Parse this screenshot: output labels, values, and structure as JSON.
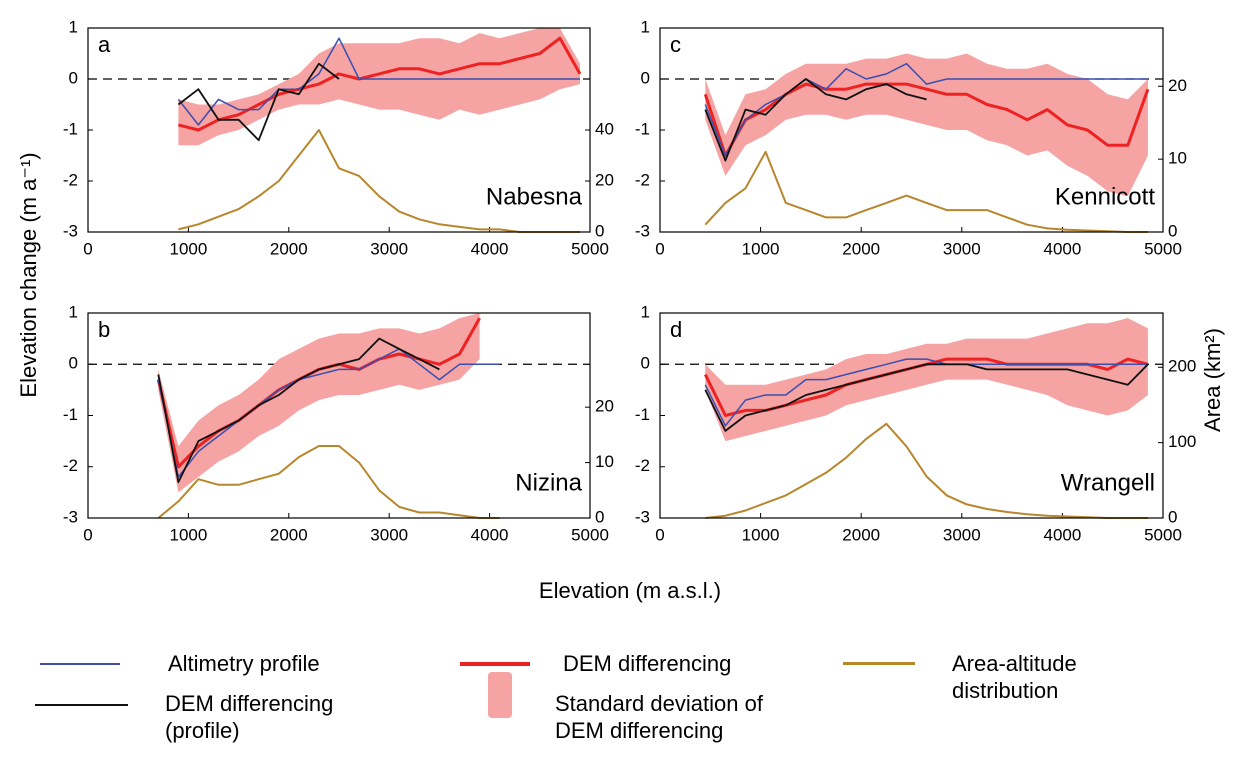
{
  "figure": {
    "y_label": "Elevation change (m a⁻¹)",
    "y2_label": "Area (km²)",
    "x_label": "Elevation (m a.s.l.)"
  },
  "chart_data": [
    {
      "type": "line",
      "panel": "a",
      "title": "Nabesna",
      "x": [
        900,
        1100,
        1300,
        1500,
        1700,
        1900,
        2100,
        2300,
        2500,
        2700,
        2900,
        3100,
        3300,
        3500,
        3700,
        3900,
        4100,
        4300,
        4500,
        4700,
        4900
      ],
      "series": [
        {
          "name": "Altimetry profile",
          "color": "#3a4fb0",
          "values": [
            -0.4,
            -0.9,
            -0.4,
            -0.6,
            -0.6,
            -0.2,
            -0.2,
            0.1,
            0.8,
            0,
            0,
            0,
            0,
            0,
            0,
            0,
            0,
            0,
            0,
            0,
            0
          ]
        },
        {
          "name": "DEM differencing",
          "color": "#ee2222",
          "values": [
            -0.9,
            -1.0,
            -0.8,
            -0.7,
            -0.5,
            -0.3,
            -0.2,
            -0.1,
            0.1,
            0.0,
            0.1,
            0.2,
            0.2,
            0.1,
            0.2,
            0.3,
            0.3,
            0.4,
            0.5,
            0.8,
            0.1
          ]
        },
        {
          "name": "Area-altitude distribution",
          "color": "#b8862c",
          "axis": "y2",
          "values": [
            1,
            3,
            6,
            9,
            14,
            20,
            30,
            40,
            25,
            22,
            14,
            8,
            5,
            3,
            2,
            1,
            1,
            0,
            0,
            0,
            0
          ]
        },
        {
          "name": "DEM differencing (profile)",
          "color": "#111111",
          "values": [
            -0.5,
            -0.2,
            -0.8,
            -0.8,
            -1.2,
            -0.2,
            -0.3,
            0.3,
            0.0,
            null,
            null,
            null,
            null,
            null,
            null,
            null,
            null,
            null,
            null,
            null,
            null
          ]
        },
        {
          "name": "Standard deviation of DEM differencing",
          "color": "#f5a3a3",
          "type": "band",
          "lower": [
            -1.3,
            -1.3,
            -1.1,
            -1.0,
            -0.8,
            -0.6,
            -0.5,
            -0.5,
            -0.4,
            -0.5,
            -0.6,
            -0.6,
            -0.7,
            -0.8,
            -0.6,
            -0.7,
            -0.6,
            -0.5,
            -0.4,
            -0.2,
            -0.1
          ],
          "upper": [
            -0.4,
            -0.5,
            -0.5,
            -0.4,
            -0.3,
            -0.1,
            0.1,
            0.5,
            0.7,
            0.7,
            0.7,
            0.7,
            0.8,
            0.8,
            0.7,
            0.9,
            0.8,
            0.9,
            1.0,
            1.0,
            0.3
          ]
        }
      ],
      "reference_line": 0,
      "xlim": [
        0,
        5000
      ],
      "xticks": [
        0,
        1000,
        2000,
        3000,
        4000,
        5000
      ],
      "ylim": [
        -3,
        1
      ],
      "yticks": [
        -3,
        -2,
        -1,
        0,
        1
      ],
      "y2lim": [
        0,
        80
      ],
      "y2ticks": [
        0,
        20,
        40
      ]
    },
    {
      "type": "line",
      "panel": "b",
      "title": "Nizina",
      "x": [
        700,
        900,
        1100,
        1300,
        1500,
        1700,
        1900,
        2100,
        2300,
        2500,
        2700,
        2900,
        3100,
        3300,
        3500,
        3700,
        3900,
        4100
      ],
      "series": [
        {
          "name": "Altimetry profile",
          "color": "#3a4fb0",
          "values": [
            -0.3,
            -2.2,
            -1.7,
            -1.4,
            -1.1,
            -0.8,
            -0.5,
            -0.3,
            -0.2,
            -0.1,
            -0.1,
            0.1,
            0.3,
            0.0,
            -0.3,
            0,
            0,
            0
          ]
        },
        {
          "name": "DEM differencing",
          "color": "#ee2222",
          "values": [
            -0.3,
            -2.0,
            -1.6,
            -1.3,
            -1.1,
            -0.8,
            -0.5,
            -0.3,
            -0.1,
            0.0,
            -0.1,
            0.1,
            0.2,
            0.1,
            0.0,
            0.2,
            0.9,
            null
          ]
        },
        {
          "name": "Area-altitude distribution",
          "color": "#b8862c",
          "axis": "y2",
          "values": [
            0,
            3,
            7,
            6,
            6,
            7,
            8,
            11,
            13,
            13,
            10,
            5,
            2,
            1,
            1,
            0.5,
            0,
            0
          ]
        },
        {
          "name": "DEM differencing (profile)",
          "color": "#111111",
          "values": [
            -0.2,
            -2.3,
            -1.5,
            -1.3,
            -1.1,
            -0.8,
            -0.6,
            -0.3,
            -0.1,
            0.0,
            0.1,
            0.5,
            0.3,
            0.1,
            -0.1,
            null,
            null,
            null
          ]
        },
        {
          "name": "Standard deviation of DEM differencing",
          "color": "#f5a3a3",
          "type": "band",
          "lower": [
            -0.5,
            -2.5,
            -2.2,
            -1.9,
            -1.7,
            -1.4,
            -1.2,
            -0.9,
            -0.7,
            -0.6,
            -0.6,
            -0.5,
            -0.4,
            -0.5,
            -0.4,
            -0.3,
            0.1,
            null
          ],
          "upper": [
            -0.1,
            -1.6,
            -1.1,
            -0.8,
            -0.6,
            -0.3,
            0.1,
            0.3,
            0.5,
            0.6,
            0.6,
            0.7,
            0.7,
            0.6,
            0.7,
            0.9,
            1.0,
            null
          ]
        }
      ],
      "reference_line": 0,
      "xlim": [
        0,
        5000
      ],
      "xticks": [
        0,
        1000,
        2000,
        3000,
        4000,
        5000
      ],
      "ylim": [
        -3,
        1
      ],
      "yticks": [
        -3,
        -2,
        -1,
        0,
        1
      ],
      "y2lim": [
        0,
        37
      ],
      "y2ticks": [
        0,
        10,
        20
      ]
    },
    {
      "type": "line",
      "panel": "c",
      "title": "Kennicott",
      "x": [
        450,
        650,
        850,
        1050,
        1250,
        1450,
        1650,
        1850,
        2050,
        2250,
        2450,
        2650,
        2850,
        3050,
        3250,
        3450,
        3650,
        3850,
        4050,
        4250,
        4450,
        4650,
        4850
      ],
      "series": [
        {
          "name": "Altimetry profile",
          "color": "#3a4fb0",
          "values": [
            -0.5,
            -1.5,
            -0.8,
            -0.5,
            -0.3,
            0.0,
            -0.2,
            0.2,
            0.0,
            0.1,
            0.3,
            -0.1,
            0,
            0,
            0,
            0,
            0,
            0,
            0,
            0,
            0,
            0,
            0
          ]
        },
        {
          "name": "DEM differencing",
          "color": "#ee2222",
          "values": [
            -0.3,
            -1.5,
            -0.8,
            -0.6,
            -0.3,
            -0.1,
            -0.2,
            -0.2,
            -0.1,
            -0.1,
            -0.1,
            -0.2,
            -0.3,
            -0.3,
            -0.5,
            -0.6,
            -0.8,
            -0.6,
            -0.9,
            -1.0,
            -1.3,
            -1.3,
            -0.2
          ]
        },
        {
          "name": "Area-altitude distribution",
          "color": "#b8862c",
          "axis": "y2",
          "values": [
            1,
            4,
            6,
            11,
            4,
            3,
            2,
            2,
            3,
            4,
            5,
            4,
            3,
            3,
            3,
            2,
            1,
            0.5,
            0.3,
            0.2,
            0.1,
            0,
            0
          ]
        },
        {
          "name": "DEM differencing (profile)",
          "color": "#111111",
          "values": [
            -0.6,
            -1.6,
            -0.6,
            -0.7,
            -0.3,
            0.0,
            -0.3,
            -0.4,
            -0.2,
            -0.1,
            -0.3,
            -0.4,
            null,
            null,
            null,
            null,
            null,
            null,
            null,
            null,
            null,
            null,
            null
          ]
        },
        {
          "name": "Standard deviation of DEM differencing",
          "color": "#f5a3a3",
          "type": "band",
          "lower": [
            -0.8,
            -1.9,
            -1.3,
            -1.1,
            -0.8,
            -0.7,
            -0.7,
            -0.8,
            -0.7,
            -0.7,
            -0.8,
            -0.9,
            -1.0,
            -1.0,
            -1.2,
            -1.3,
            -1.5,
            -1.4,
            -1.7,
            -1.9,
            -2.2,
            -2.3,
            -1.5
          ],
          "upper": [
            0.0,
            -1.1,
            -0.3,
            -0.2,
            0.1,
            0.3,
            0.3,
            0.3,
            0.4,
            0.4,
            0.5,
            0.4,
            0.4,
            0.5,
            0.3,
            0.2,
            0.2,
            0.3,
            0.1,
            0.0,
            -0.3,
            -0.4,
            0.0
          ]
        }
      ],
      "reference_line": 0,
      "xlim": [
        0,
        5000
      ],
      "xticks": [
        0,
        1000,
        2000,
        3000,
        4000,
        5000
      ],
      "ylim": [
        -3,
        1
      ],
      "yticks": [
        -3,
        -2,
        -1,
        0,
        1
      ],
      "y2lim": [
        0,
        28
      ],
      "y2ticks": [
        0,
        10,
        20
      ]
    },
    {
      "type": "line",
      "panel": "d",
      "title": "Wrangell",
      "x": [
        450,
        650,
        850,
        1050,
        1250,
        1450,
        1650,
        1850,
        2050,
        2250,
        2450,
        2650,
        2850,
        3050,
        3250,
        3450,
        3650,
        3850,
        4050,
        4250,
        4450,
        4650,
        4850
      ],
      "series": [
        {
          "name": "Altimetry profile",
          "color": "#3a4fb0",
          "values": [
            -0.4,
            -1.2,
            -0.7,
            -0.6,
            -0.6,
            -0.3,
            -0.3,
            -0.2,
            -0.1,
            0,
            0.1,
            0.1,
            0,
            0,
            0,
            0,
            0,
            0,
            0,
            0,
            0,
            0,
            0
          ]
        },
        {
          "name": "DEM differencing",
          "color": "#ee2222",
          "values": [
            -0.2,
            -1.0,
            -0.9,
            -0.9,
            -0.8,
            -0.7,
            -0.6,
            -0.4,
            -0.3,
            -0.2,
            -0.1,
            0.0,
            0.1,
            0.1,
            0.1,
            0.0,
            0.0,
            0.0,
            0.0,
            0.0,
            -0.1,
            0.1,
            0.0
          ]
        },
        {
          "name": "Area-altitude distribution",
          "color": "#b8862c",
          "axis": "y2",
          "values": [
            0,
            3,
            10,
            20,
            30,
            45,
            60,
            80,
            105,
            125,
            95,
            55,
            30,
            18,
            12,
            8,
            5,
            3,
            2,
            1,
            0,
            0,
            0
          ]
        },
        {
          "name": "DEM differencing (profile)",
          "color": "#111111",
          "values": [
            -0.5,
            -1.3,
            -1.0,
            -0.9,
            -0.8,
            -0.6,
            -0.5,
            -0.4,
            -0.3,
            -0.2,
            -0.1,
            0.0,
            0.0,
            0.0,
            -0.1,
            -0.1,
            -0.1,
            -0.1,
            -0.1,
            -0.2,
            -0.3,
            -0.4,
            0.0
          ]
        },
        {
          "name": "Standard deviation of DEM differencing",
          "color": "#f5a3a3",
          "type": "band",
          "lower": [
            -0.5,
            -1.5,
            -1.4,
            -1.3,
            -1.2,
            -1.1,
            -1.0,
            -0.8,
            -0.7,
            -0.6,
            -0.5,
            -0.4,
            -0.3,
            -0.3,
            -0.3,
            -0.4,
            -0.5,
            -0.6,
            -0.8,
            -0.9,
            -1.0,
            -0.9,
            -0.6
          ],
          "upper": [
            0.0,
            -0.4,
            -0.4,
            -0.4,
            -0.3,
            -0.2,
            -0.1,
            0.1,
            0.2,
            0.2,
            0.3,
            0.4,
            0.4,
            0.5,
            0.5,
            0.5,
            0.5,
            0.6,
            0.7,
            0.8,
            0.8,
            0.9,
            0.7
          ]
        }
      ],
      "reference_line": 0,
      "xlim": [
        0,
        5000
      ],
      "xticks": [
        0,
        1000,
        2000,
        3000,
        4000,
        5000
      ],
      "ylim": [
        -3,
        1
      ],
      "yticks": [
        -3,
        -2,
        -1,
        0,
        1
      ],
      "y2lim": [
        0,
        272
      ],
      "y2ticks": [
        0,
        100,
        200
      ]
    }
  ]
}
